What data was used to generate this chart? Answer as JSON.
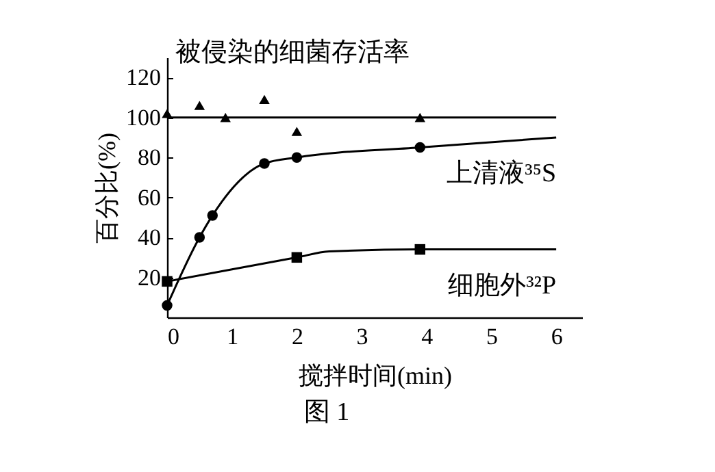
{
  "chart_data": {
    "type": "line",
    "xlabel": "搅拌时间(min)",
    "ylabel": "百分比(%)",
    "xlim": [
      0,
      6.4
    ],
    "ylim": [
      0,
      130
    ],
    "xticks": [
      0,
      1,
      2,
      3,
      4,
      5,
      6
    ],
    "yticks": [
      20,
      40,
      60,
      80,
      100,
      120
    ],
    "grid": false,
    "legend": false,
    "series": [
      {
        "type": "scatter",
        "marker": "triangle",
        "color": "#000000",
        "x": [
          0,
          0.5,
          0.9,
          1.5,
          2,
          3.9
        ],
        "values": [
          102,
          106,
          100,
          109,
          93,
          100
        ]
      },
      {
        "marker": "none",
        "color": "#000000",
        "x": [
          0,
          6
        ],
        "values": [
          100,
          100
        ]
      },
      {
        "type": "scatter",
        "marker": "circle",
        "color": "#000000",
        "x": [
          0,
          0.5,
          0.7,
          1.5,
          2,
          3.9
        ],
        "values": [
          6,
          40,
          51,
          77,
          80,
          85
        ]
      },
      {
        "name": "上清液³⁵S",
        "marker": "none",
        "color": "#000000",
        "x": [
          0,
          0.5,
          0.7,
          1.5,
          2,
          3.9,
          6
        ],
        "values": [
          6,
          40,
          51,
          77,
          80,
          85,
          90
        ]
      },
      {
        "type": "scatter",
        "marker": "square",
        "color": "#000000",
        "x": [
          0,
          2,
          3.9
        ],
        "values": [
          18,
          30,
          34
        ]
      },
      {
        "name": "细胞外³²P",
        "marker": "none",
        "color": "#000000",
        "x": [
          0,
          2,
          2.5,
          3.9,
          6
        ],
        "values": [
          18,
          30,
          33,
          34,
          34
        ]
      }
    ],
    "annotations": [
      "被侵染的细菌存活率",
      "图 1"
    ]
  }
}
